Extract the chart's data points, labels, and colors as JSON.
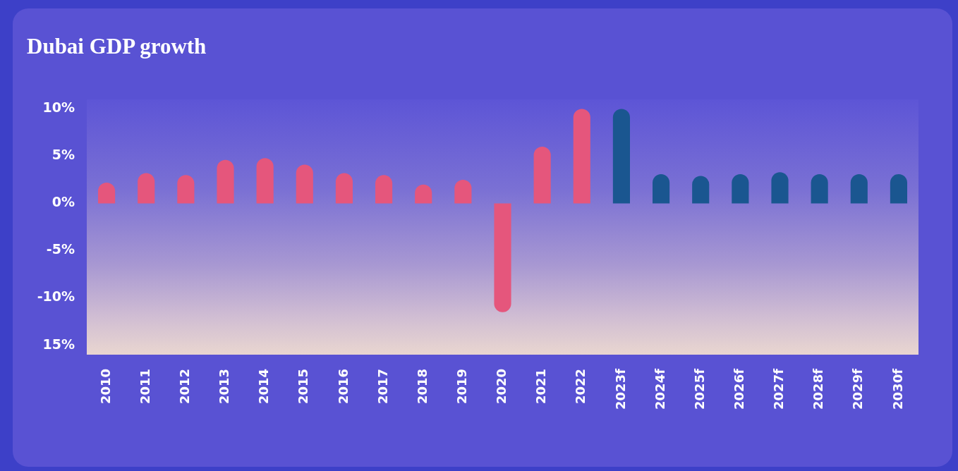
{
  "chart_data": {
    "type": "bar",
    "title": "Dubai GDP growth",
    "categories": [
      "2010",
      "2011",
      "2012",
      "2013",
      "2014",
      "2015",
      "2016",
      "2017",
      "2018",
      "2019",
      "2020",
      "2021",
      "2022",
      "2023f",
      "2024f",
      "2025f",
      "2026f",
      "2027f",
      "2028f",
      "2029f",
      "2030f"
    ],
    "values": [
      2.2,
      3.2,
      3.0,
      4.6,
      4.8,
      4.1,
      3.2,
      3.0,
      2.0,
      2.5,
      -11.5,
      6.0,
      10.0,
      10.0,
      3.1,
      2.9,
      3.1,
      3.3,
      3.1,
      3.1,
      3.1
    ],
    "colors": [
      "#e5567c",
      "#e5567c",
      "#e5567c",
      "#e5567c",
      "#e5567c",
      "#e5567c",
      "#e5567c",
      "#e5567c",
      "#e5567c",
      "#e5567c",
      "#e5567c",
      "#e5567c",
      "#e5567c",
      "#1a5690",
      "#1a5690",
      "#1a5690",
      "#1a5690",
      "#1a5690",
      "#1a5690",
      "#1a5690",
      "#1a5690"
    ],
    "ylim": [
      -16,
      11
    ],
    "yticks": [
      {
        "value": 10,
        "label": "10%"
      },
      {
        "value": 5,
        "label": "5%"
      },
      {
        "value": 0,
        "label": "0%"
      },
      {
        "value": -5,
        "label": "-5%"
      },
      {
        "value": -10,
        "label": "-10%"
      },
      {
        "value": -15,
        "label": "15%"
      }
    ]
  }
}
